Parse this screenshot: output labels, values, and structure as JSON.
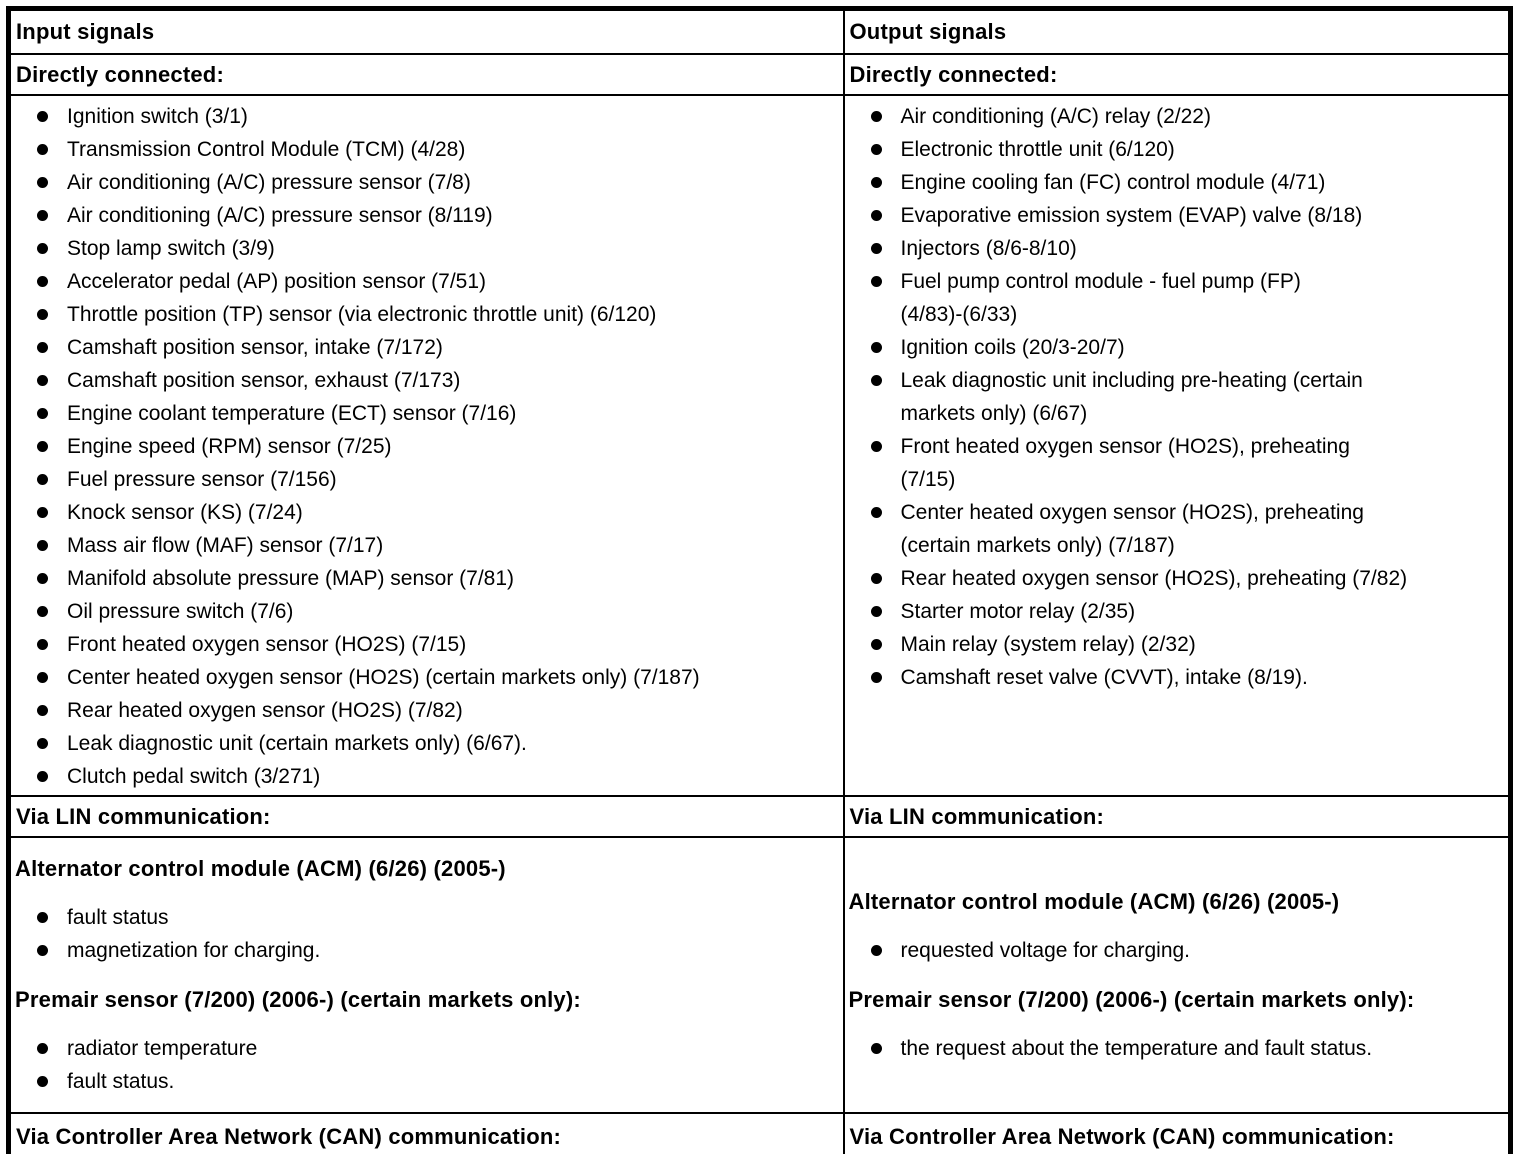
{
  "colors": {
    "background": "#ffffff",
    "text": "#000000",
    "border": "#000000"
  },
  "input_column": {
    "header": "Input signals",
    "directly_connected": {
      "label": "Directly connected:",
      "items": [
        "Ignition switch (3/1)",
        "Transmission Control Module (TCM) (4/28)",
        "Air conditioning (A/C) pressure sensor (7/8)",
        "Air conditioning (A/C) pressure sensor (8/119)",
        "Stop lamp switch (3/9)",
        "Accelerator pedal (AP) position sensor (7/51)",
        "Throttle position (TP) sensor (via electronic throttle unit) (6/120)",
        "Camshaft position sensor, intake (7/172)",
        "Camshaft position sensor, exhaust (7/173)",
        "Engine coolant temperature (ECT) sensor (7/16)",
        "Engine speed (RPM) sensor (7/25)",
        "Fuel pressure sensor (7/156)",
        "Knock sensor (KS) (7/24)",
        "Mass air flow (MAF) sensor (7/17)",
        "Manifold absolute pressure (MAP) sensor (7/81)",
        "Oil pressure switch (7/6)",
        "Front heated oxygen sensor (HO2S) (7/15)",
        "Center heated oxygen sensor (HO2S) (certain markets only) (7/187)",
        "Rear heated oxygen sensor (HO2S) (7/82)",
        "Leak diagnostic unit (certain markets only) (6/67).",
        "Clutch pedal switch (3/271)"
      ]
    },
    "via_lin": {
      "label": "Via LIN communication:",
      "sections": [
        {
          "heading": "Alternator control module (ACM) (6/26) (2005-)",
          "items": [
            "fault status",
            "magnetization for charging."
          ]
        },
        {
          "heading": "Premair sensor (7/200) (2006-) (certain markets only):",
          "items": [
            "radiator temperature",
            "fault status."
          ]
        }
      ]
    },
    "via_can": {
      "label": "Via Controller Area Network (CAN) communication:"
    }
  },
  "output_column": {
    "header": "Output signals",
    "directly_connected": {
      "label": "Directly connected:",
      "items": [
        "Air conditioning (A/C) relay (2/22)",
        "Electronic throttle unit (6/120)",
        "Engine cooling fan (FC) control module (4/71)",
        "Evaporative emission system (EVAP) valve (8/18)",
        "Injectors (8/6-8/10)",
        "Fuel pump control module - fuel pump (FP)\n(4/83)-(6/33)",
        "Ignition coils (20/3-20/7)",
        "Leak diagnostic unit including pre-heating (certain\nmarkets only) (6/67)",
        "Front heated oxygen sensor (HO2S), preheating\n(7/15)",
        "Center heated oxygen sensor (HO2S), preheating\n(certain markets only) (7/187)",
        "Rear heated oxygen sensor (HO2S), preheating (7/82)",
        "Starter motor relay (2/35)",
        "Main relay (system relay) (2/32)",
        "Camshaft reset valve (CVVT), intake (8/19)."
      ]
    },
    "via_lin": {
      "label": "Via LIN communication:",
      "sections": [
        {
          "heading": "Alternator control module (ACM) (6/26) (2005-)",
          "items": [
            "requested voltage for charging."
          ]
        },
        {
          "heading": "Premair sensor (7/200) (2006-) (certain markets only):",
          "items": [
            "the request about the temperature and fault status."
          ]
        }
      ]
    },
    "via_can": {
      "label": "Via Controller Area Network (CAN) communication:"
    }
  }
}
